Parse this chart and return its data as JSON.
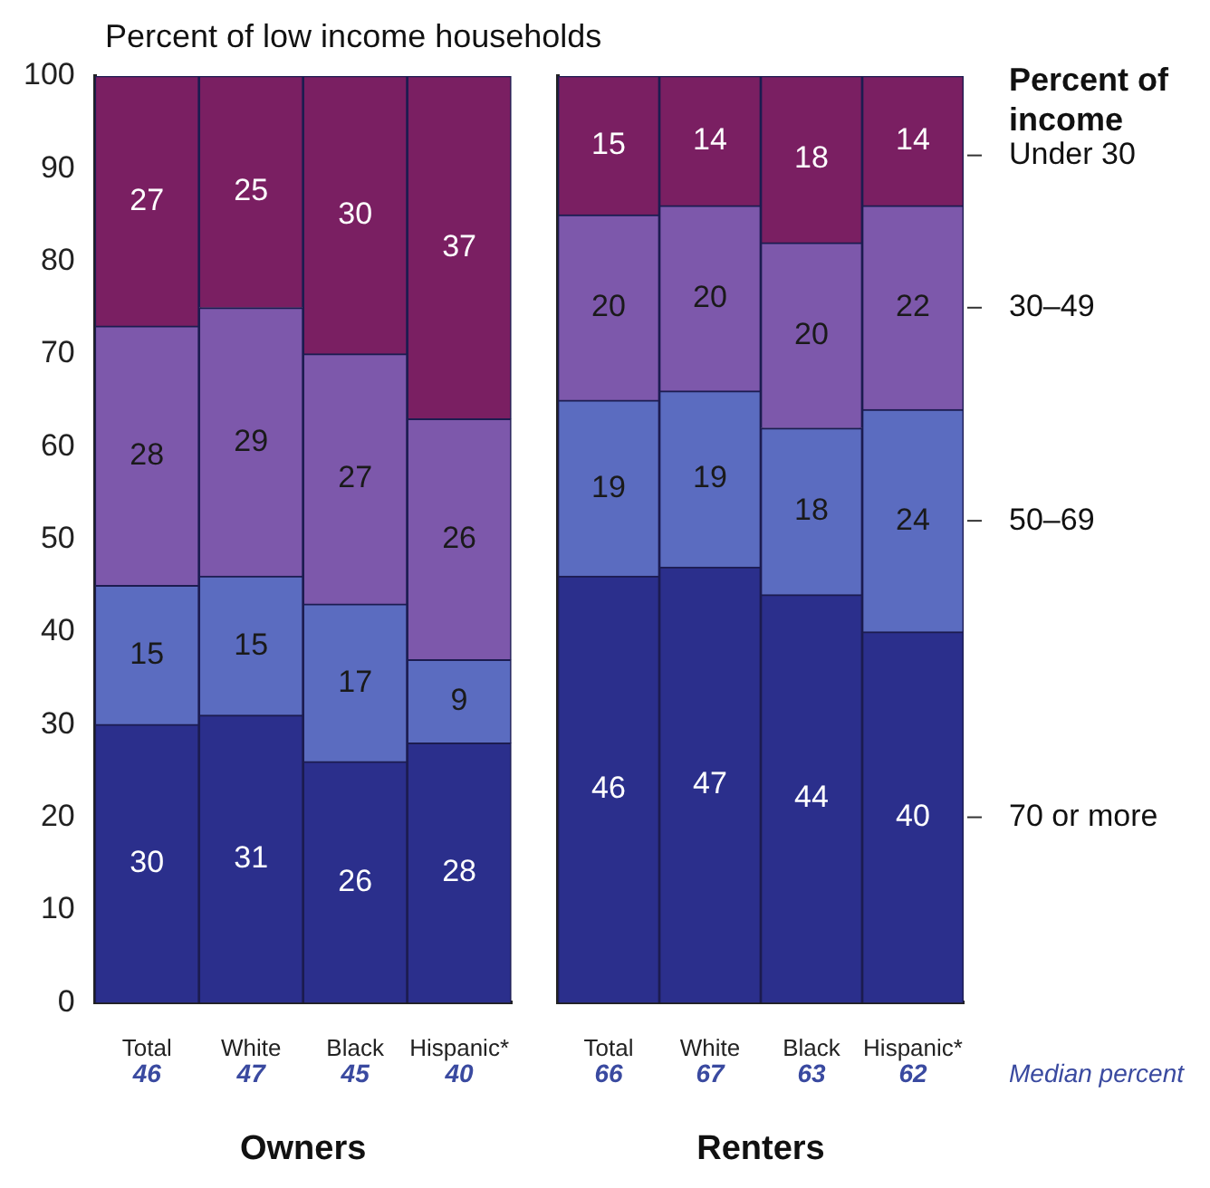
{
  "chart_data": [
    {
      "type": "bar",
      "stacked": true,
      "xlabel": "Owners",
      "ylabel": "Percent of low income households",
      "categories": [
        "Total",
        "White",
        "Black",
        "Hispanic*"
      ],
      "series": [
        {
          "color": "#2b2f8c",
          "values": [
            30,
            31,
            26,
            28
          ]
        },
        {
          "color": "#5b6cc0",
          "values": [
            15,
            15,
            17,
            9
          ]
        },
        {
          "color": "#7d58ab",
          "values": [
            28,
            29,
            27,
            26
          ]
        },
        {
          "color": "#7a1f62",
          "values": [
            27,
            25,
            30,
            37
          ]
        }
      ],
      "ylim": [
        0,
        100
      ],
      "yticks": [
        0,
        10,
        20,
        30,
        40,
        50,
        60,
        70,
        80,
        90,
        100
      ],
      "data_labels": true,
      "legend": false,
      "annotations": [
        "46",
        "47",
        "45",
        "40"
      ]
    },
    {
      "type": "bar",
      "stacked": true,
      "xlabel": "Renters",
      "legend_title": "Percent of income",
      "categories": [
        "Total",
        "White",
        "Black",
        "Hispanic*"
      ],
      "series": [
        {
          "name": "70 or more",
          "color": "#2b2f8c",
          "values": [
            46,
            47,
            44,
            40
          ]
        },
        {
          "name": "50–69",
          "color": "#5b6cc0",
          "values": [
            19,
            19,
            18,
            24
          ]
        },
        {
          "name": "30–49",
          "color": "#7d58ab",
          "values": [
            20,
            20,
            20,
            22
          ]
        },
        {
          "name": "Under 30",
          "color": "#7a1f62",
          "values": [
            15,
            14,
            18,
            14
          ]
        }
      ],
      "ylim": [
        0,
        100
      ],
      "tick_labels": "x",
      "data_labels": true,
      "legend": "right",
      "annotations": [
        "66",
        "67",
        "63",
        "62",
        "Median percent"
      ]
    }
  ]
}
